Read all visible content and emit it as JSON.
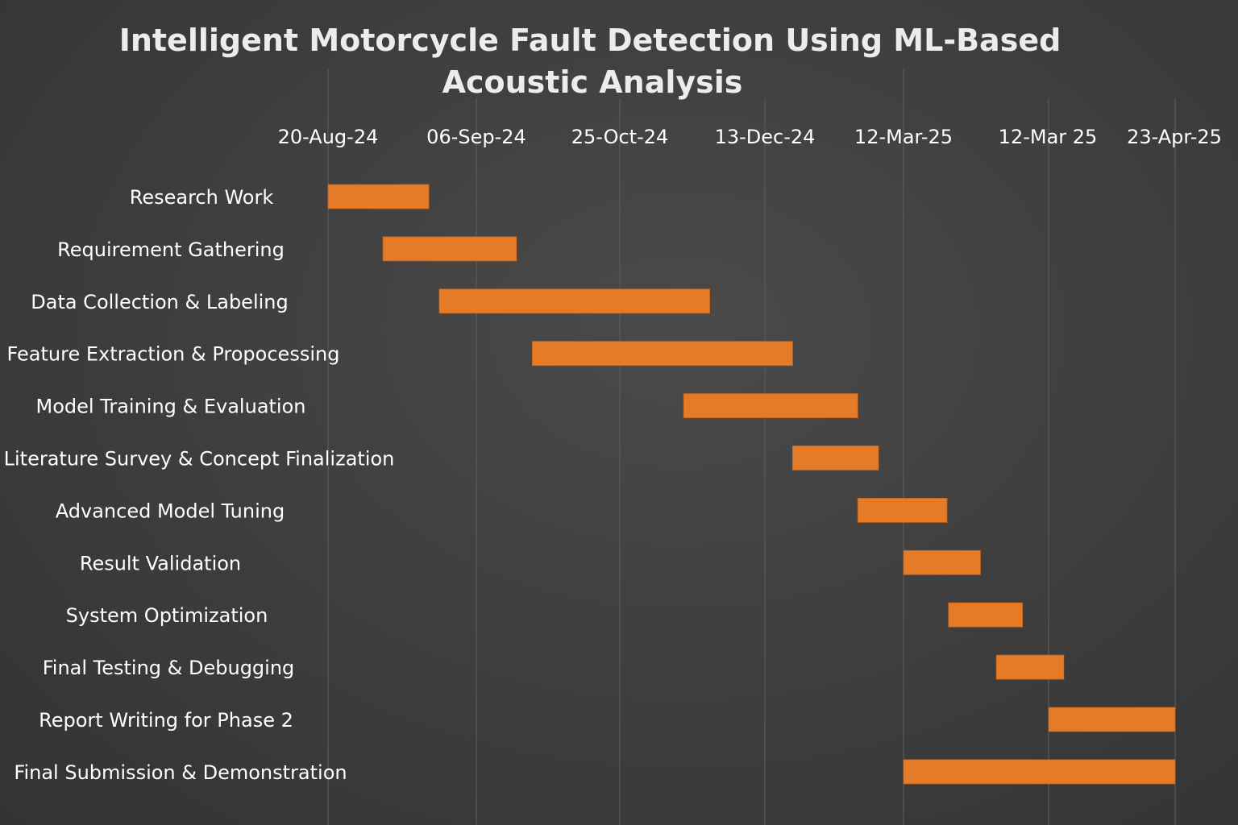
{
  "chart_data": {
    "type": "bar",
    "title_lines": [
      "Intelligent Motorcycle Fault Detection Using ML-Based",
      "Acoustic Analysis"
    ],
    "x_ticks": [
      "20-Aug-24",
      "06-Sep-24",
      "25-Oct-24",
      "13-Dec-24",
      "12-Mar-25",
      "12-Mar 25",
      "23-Apr-25"
    ],
    "tasks": [
      {
        "name": "Research Work",
        "start": 0.0,
        "end": 0.68
      },
      {
        "name": "Requirement Gathering",
        "start": 0.37,
        "end": 1.28
      },
      {
        "name": "Data Collection & Labeling",
        "start": 0.75,
        "end": 2.62
      },
      {
        "name": "Feature Extraction & Propocessing",
        "start": 1.39,
        "end": 3.2
      },
      {
        "name": "Model Training & Evaluation",
        "start": 2.44,
        "end": 3.67
      },
      {
        "name": "Literature Survey & Concept Finalization",
        "start": 3.2,
        "end": 3.82
      },
      {
        "name": "Advanced Model Tuning",
        "start": 3.67,
        "end": 4.3
      },
      {
        "name": "Result Validation",
        "start": 4.0,
        "end": 4.53
      },
      {
        "name": "System Optimization",
        "start": 4.31,
        "end": 4.82
      },
      {
        "name": "Final Testing & Debugging",
        "start": 4.64,
        "end": 5.12
      },
      {
        "name": "Report Writing for Phase 2",
        "start": 5.0,
        "end": 6.0
      },
      {
        "name": "Final Submission & Demonstration",
        "start": 4.0,
        "end": 6.0
      }
    ],
    "x_axis_note": "start/end positions measured in tick-index units (0 = 20-Aug-24 tick, 6 = 23-Apr-25 tick); tick spacing on the chart is uneven",
    "bar_color": "#e57a27",
    "background_color": "#3f3f3f",
    "grid": true
  }
}
